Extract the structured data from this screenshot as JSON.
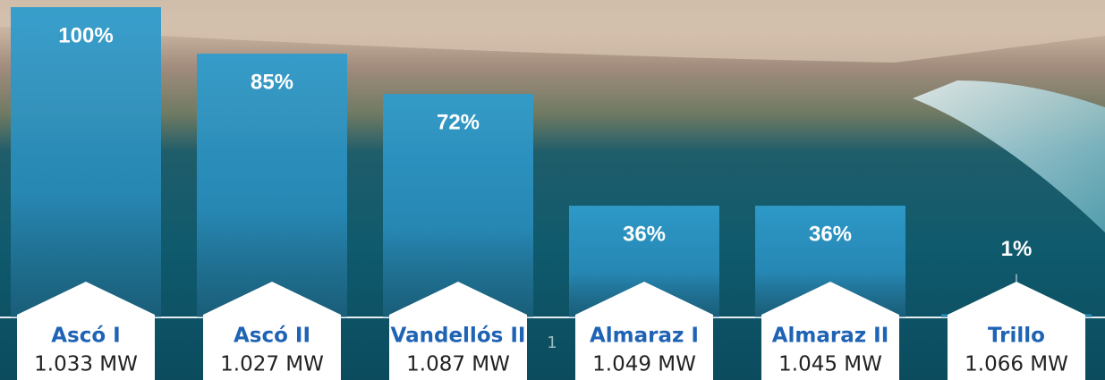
{
  "chart_data": {
    "type": "bar",
    "categories": [
      "Ascó I",
      "Ascó II",
      "Vandellós II",
      "Almaraz I",
      "Almaraz II",
      "Trillo"
    ],
    "values": [
      100,
      85,
      72,
      36,
      36,
      1
    ],
    "value_labels": [
      "100%",
      "85%",
      "72%",
      "36%",
      "36%",
      "1%"
    ],
    "capacities": [
      "1.033 MW",
      "1.027 MW",
      "1.087 MW",
      "1.049 MW",
      "1.045 MW",
      "1.066 MW"
    ],
    "page_number": "1"
  }
}
